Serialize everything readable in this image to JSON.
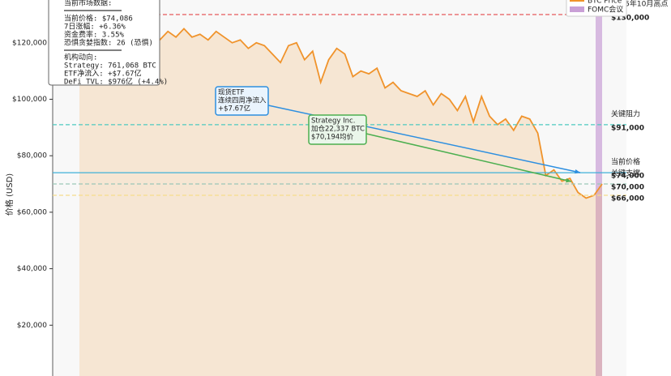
{
  "chart_data": {
    "type": "line",
    "ylabel": "价格 (USD)",
    "ylim": [
      0,
      135000
    ],
    "yticks": [
      {
        "value": 20000,
        "label": "$20,000"
      },
      {
        "value": 40000,
        "label": "$40,000"
      },
      {
        "value": 60000,
        "label": "$60,000"
      },
      {
        "value": 80000,
        "label": "$80,000"
      },
      {
        "value": 100000,
        "label": "$100,000"
      },
      {
        "value": 120000,
        "label": "$120,000"
      }
    ],
    "series": [
      {
        "name": "BTC Price",
        "color": "#f0932b",
        "values": [
          124000,
          126000,
          125000,
          127000,
          124000,
          126000,
          125000,
          128000,
          124000,
          126000,
          121000,
          124000,
          122000,
          125000,
          122000,
          123000,
          121000,
          124000,
          122000,
          120000,
          121000,
          118000,
          120000,
          119000,
          116000,
          113000,
          119000,
          120000,
          114000,
          117000,
          106000,
          114000,
          118000,
          116000,
          108000,
          110000,
          109000,
          111000,
          104000,
          106000,
          103000,
          102000,
          101000,
          103000,
          98000,
          102000,
          100000,
          96000,
          101000,
          92000,
          101000,
          94000,
          91000,
          93000,
          89000,
          94000,
          93000,
          88000,
          73000,
          75000,
          71000,
          72000,
          67000,
          65000,
          66000,
          70000
        ]
      }
    ],
    "fomc": {
      "name": "FOMC会议",
      "color": "#c9a0d6"
    },
    "hlines": [
      {
        "value": 130000,
        "label": "2025年10月高点",
        "value_label": "$130,000",
        "color": "#e8696b",
        "style": "dashed"
      },
      {
        "value": 91000,
        "label": "关键阻力",
        "value_label": "$91,000",
        "color": "#4ec9c0",
        "style": "dashed"
      },
      {
        "value": 74000,
        "label": "当前价格",
        "value_label": "$74,000",
        "color": "#3fb0d8",
        "style": "solid"
      },
      {
        "value": 70000,
        "label": "关键支撑",
        "value_label": "$70,000",
        "color": "#9cc7b8",
        "style": "dashed"
      },
      {
        "value": 66000,
        "value_label": "$66,000",
        "color": "#f5dc8a",
        "style": "dashed"
      }
    ],
    "annotations": [
      {
        "lines": [
          "现货ETF",
          "连续四周净流入",
          "+$7.67亿"
        ],
        "color": "#2d8fe0",
        "bg": "#eaf4fd"
      },
      {
        "lines": [
          "Strategy Inc.",
          "加仓22,337 BTC",
          "$70,194均价"
        ],
        "color": "#4caf50",
        "bg": "#eaf6ea"
      }
    ],
    "info_box": {
      "header": "当前市场数据:",
      "market": [
        "当前价格: $74,086",
        "7日涨幅: +6.36%",
        "资金费率: 3.55%",
        "恐惧贪婪指数: 26 (恐惧)"
      ],
      "inst_header": "机构动向:",
      "inst": [
        "Strategy: 761,068 BTC",
        "ETF净流入: +$7.67亿",
        "DeFi TVL: $976亿 (+4.4%)"
      ]
    }
  }
}
